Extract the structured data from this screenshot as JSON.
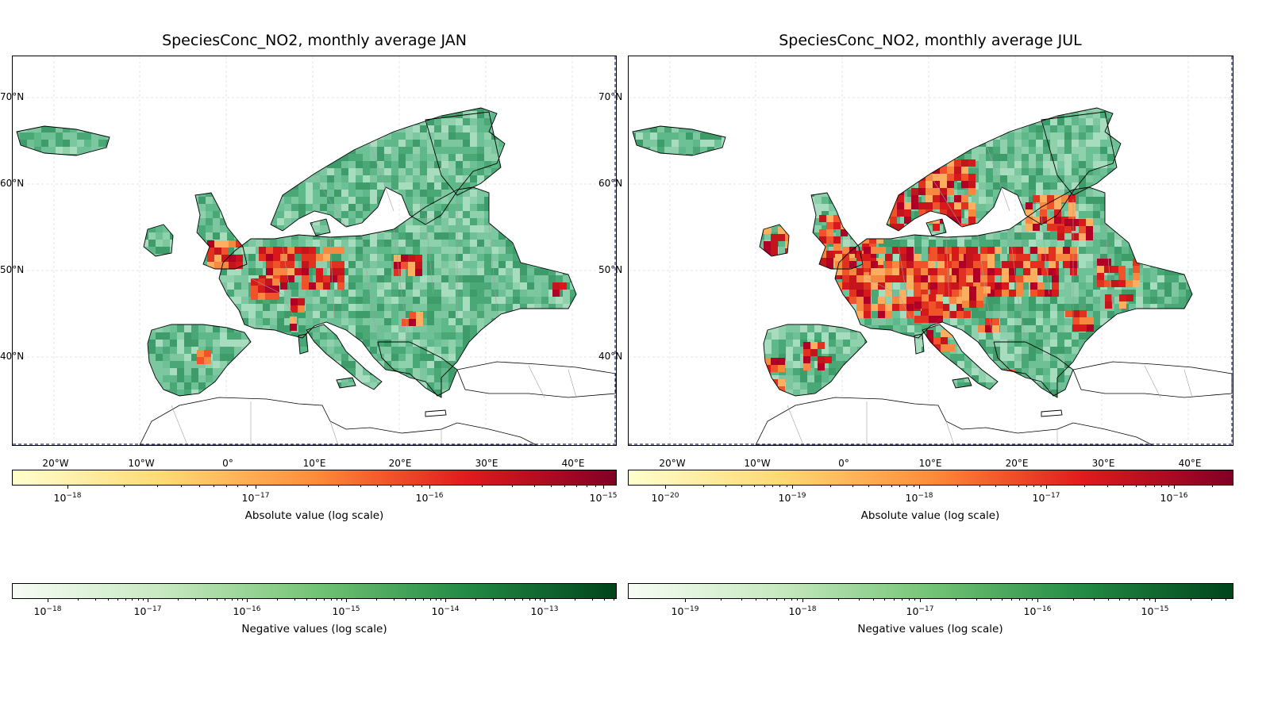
{
  "panels": [
    {
      "title": "SpeciesConc_NO2, monthly average JAN",
      "lat_labels": [
        "70°N",
        "60°N",
        "50°N",
        "40°N"
      ],
      "lon_labels": [
        "20°W",
        "10°W",
        "0°",
        "10°E",
        "20°E",
        "30°E",
        "40°E"
      ],
      "colorbar_abs": {
        "label": "Absolute value (log scale)",
        "colormap": "YlOrRd",
        "tick_exponents": [
          "-18",
          "-17",
          "-16",
          "-15"
        ]
      },
      "colorbar_neg": {
        "label": "Negative values (log scale)",
        "colormap": "Greens",
        "tick_exponents": [
          "-18",
          "-17",
          "-16",
          "-15",
          "-14",
          "-13"
        ]
      }
    },
    {
      "title": "SpeciesConc_NO2, monthly average JUL",
      "lat_labels": [
        "70°N",
        "60°N",
        "50°N",
        "40°N"
      ],
      "lon_labels": [
        "20°W",
        "10°W",
        "0°",
        "10°E",
        "20°E",
        "30°E",
        "40°E"
      ],
      "colorbar_abs": {
        "label": "Absolute value (log scale)",
        "colormap": "YlOrRd",
        "tick_exponents": [
          "-20",
          "-19",
          "-18",
          "-17",
          "-16"
        ]
      },
      "colorbar_neg": {
        "label": "Negative values (log scale)",
        "colormap": "Greens",
        "tick_exponents": [
          "-19",
          "-18",
          "-17",
          "-16",
          "-15"
        ]
      }
    }
  ],
  "colors": {
    "land_negative": "#5fb88a",
    "land_negative_dark": "#1f8a4c",
    "hotspot_red": "#e0321f",
    "hotspot_orange": "#f7883f",
    "coastline": "#000000",
    "border": "#a0a0a0",
    "grid": "#e6e6e6"
  }
}
